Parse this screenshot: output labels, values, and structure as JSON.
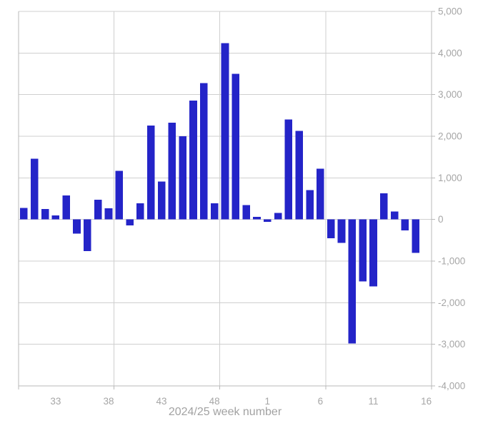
{
  "chart_data": {
    "type": "bar",
    "title": "",
    "xlabel": "2024/25 week number",
    "ylabel": "",
    "legend": "none",
    "grid": "on",
    "ylim": [
      -4000,
      5000
    ],
    "categories": [
      "30",
      "31",
      "32",
      "33",
      "34",
      "35",
      "36",
      "37",
      "38",
      "39",
      "40",
      "41",
      "42",
      "43",
      "44",
      "45",
      "46",
      "47",
      "48",
      "49",
      "50",
      "51",
      "52",
      "1",
      "2",
      "3",
      "4",
      "5",
      "6",
      "7",
      "8",
      "9",
      "10",
      "11",
      "12",
      "13",
      "14",
      "15",
      "16"
    ],
    "values": [
      280,
      1460,
      250,
      100,
      580,
      -340,
      -760,
      475,
      270,
      1170,
      -145,
      390,
      2260,
      915,
      2330,
      2000,
      2860,
      3280,
      385,
      4240,
      3500,
      345,
      60,
      -55,
      160,
      2400,
      2130,
      710,
      1220,
      -450,
      -560,
      -2980,
      -1490,
      -1610,
      630,
      190,
      -260,
      -800,
      null
    ],
    "x_tick_labels": [
      "33",
      "38",
      "43",
      "48",
      "1",
      "6",
      "11",
      "16"
    ],
    "x_gridlines_after": [
      "38",
      "48",
      "6"
    ],
    "y_tick_labels": [
      "5,000",
      "4,000",
      "3,000",
      "2,000",
      "1,000",
      "0",
      "-1,000",
      "-2,000",
      "-3,000",
      "-4,000"
    ],
    "y_tick_values": [
      5000,
      4000,
      3000,
      2000,
      1000,
      0,
      -1000,
      -2000,
      -3000,
      -4000
    ],
    "bar_color": "#2424c8",
    "gridline_color": "#cfcfcf",
    "axis_line_color": "#b9b9b9",
    "tick_label_color": "#a6a6a6",
    "axis_title_color": "#a2a2a2"
  }
}
